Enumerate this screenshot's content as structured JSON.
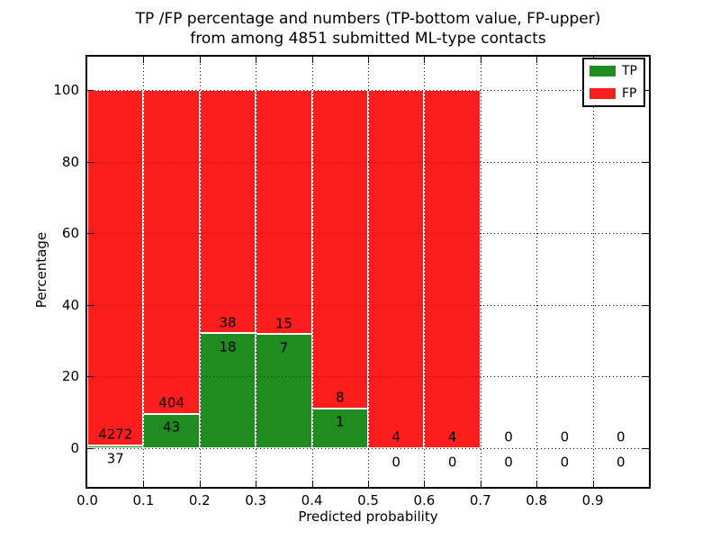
{
  "chart_data": {
    "type": "bar",
    "stacked": true,
    "title_line1": "TP /FP percentage and numbers (TP-bottom value, FP-upper)",
    "title_line2": "from among 4851 submitted ML-type contacts",
    "xlabel": "Predicted probability",
    "ylabel": "Percentage",
    "total_submitted_contacts": 4851,
    "x_ticks": [
      "0.0",
      "0.1",
      "0.2",
      "0.3",
      "0.4",
      "0.5",
      "0.6",
      "0.7",
      "0.8",
      "0.9"
    ],
    "y_ticks": [
      0,
      20,
      40,
      60,
      80,
      100
    ],
    "xlim": [
      0.0,
      1.0
    ],
    "ylim": [
      -10.8,
      109.3
    ],
    "grid": true,
    "bin_width": 0.1,
    "bars_normalized_to_percent": true,
    "bins": [
      {
        "x_start": 0.0,
        "tp": 37,
        "fp": 4272
      },
      {
        "x_start": 0.1,
        "tp": 43,
        "fp": 404
      },
      {
        "x_start": 0.2,
        "tp": 18,
        "fp": 38
      },
      {
        "x_start": 0.3,
        "tp": 7,
        "fp": 15
      },
      {
        "x_start": 0.4,
        "tp": 1,
        "fp": 8
      },
      {
        "x_start": 0.5,
        "tp": 0,
        "fp": 4
      },
      {
        "x_start": 0.6,
        "tp": 0,
        "fp": 4
      },
      {
        "x_start": 0.7,
        "tp": 0,
        "fp": 0
      },
      {
        "x_start": 0.8,
        "tp": 0,
        "fp": 0
      },
      {
        "x_start": 0.9,
        "tp": 0,
        "fp": 0
      }
    ],
    "legend": {
      "position": "upper right",
      "entries": [
        {
          "label": "TP"
        },
        {
          "label": "FP"
        }
      ]
    },
    "colors": {
      "tp": "#1e8c1e",
      "fp": "#fc1d1d",
      "bar_edge": "#ffffff",
      "grid": "#000000",
      "text": "#000000",
      "background": "#ffffff"
    }
  }
}
